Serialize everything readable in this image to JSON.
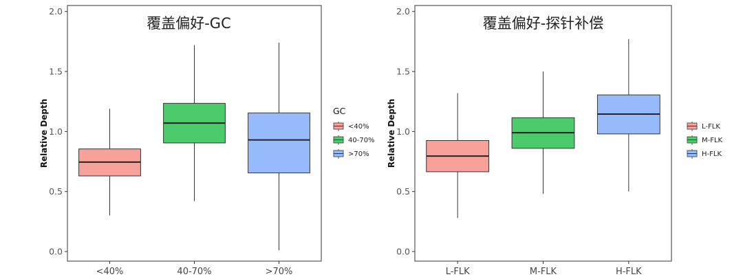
{
  "chart_data": [
    {
      "type": "boxplot",
      "title": "覆盖偏好-GC",
      "xlabel": "",
      "ylabel": "Relative Depth",
      "ylim": [
        -0.08,
        2.05
      ],
      "yticks": [
        "0.0",
        "0.5",
        "1.0",
        "1.5",
        "2.0"
      ],
      "grid": false,
      "legend": {
        "title": "GC",
        "position": "right"
      },
      "categories": [
        "<40%",
        "40-70%",
        ">70%"
      ],
      "series": [
        {
          "name": "<40%",
          "color": "#F8A09A",
          "whisker_low": 0.3,
          "q1": 0.63,
          "median": 0.745,
          "q3": 0.855,
          "whisker_high": 1.19
        },
        {
          "name": "40-70%",
          "color": "#4DCB6C",
          "whisker_low": 0.42,
          "q1": 0.905,
          "median": 1.07,
          "q3": 1.235,
          "whisker_high": 1.72
        },
        {
          "name": ">70%",
          "color": "#97BAFC",
          "whisker_low": 0.01,
          "q1": 0.655,
          "median": 0.93,
          "q3": 1.155,
          "whisker_high": 1.74
        }
      ]
    },
    {
      "type": "boxplot",
      "title": "覆盖偏好-探针补偿",
      "xlabel": "",
      "ylabel": "Relative Depth",
      "ylim": [
        -0.08,
        2.05
      ],
      "yticks": [
        "0.0",
        "0.5",
        "1.0",
        "1.5",
        "2.0"
      ],
      "grid": false,
      "legend": {
        "title": "",
        "position": "right"
      },
      "categories": [
        "L-FLK",
        "M-FLK",
        "H-FLK"
      ],
      "series": [
        {
          "name": "L-FLK",
          "color": "#F8A09A",
          "whisker_low": 0.28,
          "q1": 0.665,
          "median": 0.795,
          "q3": 0.925,
          "whisker_high": 1.32
        },
        {
          "name": "M-FLK",
          "color": "#4DCB6C",
          "whisker_low": 0.48,
          "q1": 0.86,
          "median": 0.99,
          "q3": 1.115,
          "whisker_high": 1.5
        },
        {
          "name": "H-FLK",
          "color": "#97BAFC",
          "whisker_low": 0.5,
          "q1": 0.98,
          "median": 1.145,
          "q3": 1.305,
          "whisker_high": 1.77
        }
      ]
    }
  ]
}
